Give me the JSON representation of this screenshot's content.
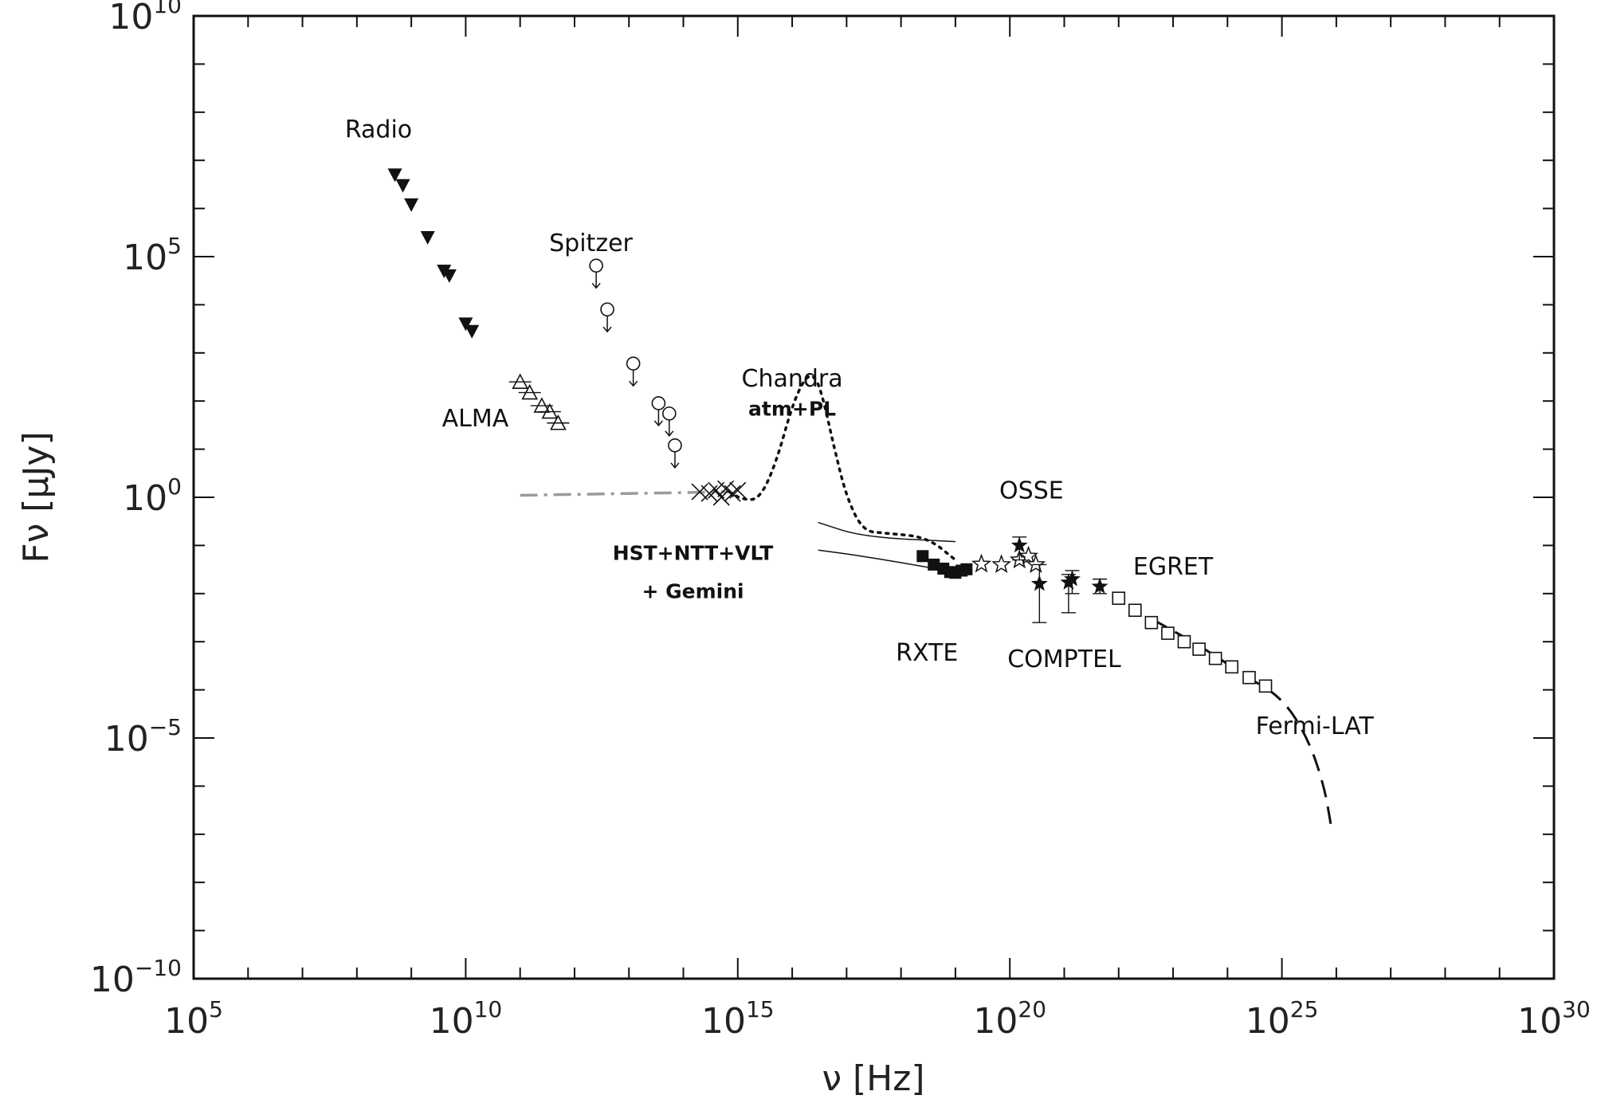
{
  "chart_data": {
    "type": "scatter",
    "xscale": "log",
    "yscale": "log",
    "xlim": [
      100000.0,
      1e+30
    ],
    "ylim": [
      1e-10,
      10000000000.0
    ],
    "xlabel": "ν [Hz]",
    "ylabel": "Fν [μJy]",
    "x_ticks": [
      {
        "base": "10",
        "exp": "5"
      },
      {
        "base": "10",
        "exp": "10"
      },
      {
        "base": "10",
        "exp": "15"
      },
      {
        "base": "10",
        "exp": "20"
      },
      {
        "base": "10",
        "exp": "25"
      },
      {
        "base": "10",
        "exp": "30"
      }
    ],
    "y_ticks": [
      {
        "base": "10",
        "exp": "−10"
      },
      {
        "base": "10",
        "exp": "−5"
      },
      {
        "base": "10",
        "exp": "0"
      },
      {
        "base": "10",
        "exp": "5"
      },
      {
        "base": "10",
        "exp": "10"
      }
    ],
    "annotations": [
      {
        "text": "Radio",
        "x": 250000000.0,
        "y": 30000000.0
      },
      {
        "text": "Spitzer",
        "x": 2000000000000.0,
        "y": 130000.0
      },
      {
        "text": "Chandra",
        "x": 1e+16,
        "y": 200
      },
      {
        "text": "atm+PL",
        "x": 1e+16,
        "y": 50
      },
      {
        "text": "ALMA",
        "x": 15000000000.0,
        "y": 30
      },
      {
        "text": "HST+NTT+VLT",
        "x": 150000000000000.0,
        "y": 0.05
      },
      {
        "text": "+ Gemini",
        "x": 150000000000000.0,
        "y": 0.008
      },
      {
        "text": "OSSE",
        "x": 2.5e+20,
        "y": 0.95
      },
      {
        "text": "EGRET",
        "x": 1e+23,
        "y": 0.025
      },
      {
        "text": "RXTE",
        "x": 3e+18,
        "y": 0.0004
      },
      {
        "text": "COMPTEL",
        "x": 1e+21,
        "y": 0.0003
      },
      {
        "text": "Fermi-LAT",
        "x": 4e+25,
        "y": 1.2e-05
      }
    ],
    "series": [
      {
        "marker": "down-triangle-filled",
        "points": [
          [
            500000000.0,
            5000000.0
          ],
          [
            700000000.0,
            3000000.0
          ],
          [
            1000000000.0,
            1200000.0
          ],
          [
            2000000000.0,
            250000.0
          ],
          [
            4000000000.0,
            50000.0
          ],
          [
            5000000000.0,
            40000.0
          ],
          [
            10000000000.0,
            4000.0
          ],
          [
            13000000000.0,
            2800.0
          ]
        ]
      },
      {
        "marker": "circle-upper-limit",
        "points": [
          [
            2500000000000.0,
            65000.0
          ],
          [
            4000000000000.0,
            8000.0
          ],
          [
            12000000000000.0,
            600
          ],
          [
            35000000000000.0,
            90
          ],
          [
            55000000000000.0,
            55
          ],
          [
            70000000000000.0,
            12
          ]
        ]
      },
      {
        "marker": "up-triangle-open",
        "points": [
          [
            100000000000.0,
            250
          ],
          [
            150000000000.0,
            150
          ],
          [
            250000000000.0,
            80
          ],
          [
            350000000000.0,
            60
          ],
          [
            500000000000.0,
            35
          ]
        ]
      },
      {
        "marker": "cross",
        "points": [
          [
            200000000000000.0,
            1.3
          ],
          [
            300000000000000.0,
            1.2
          ],
          [
            400000000000000.0,
            1.4
          ],
          [
            500000000000000.0,
            1.0
          ],
          [
            600000000000000.0,
            1.5
          ],
          [
            800000000000000.0,
            1.2
          ],
          [
            1000000000000000.0,
            1.4
          ]
        ]
      },
      {
        "marker": "square-filled",
        "points": [
          [
            2.5e+18,
            0.06
          ],
          [
            4e+18,
            0.04
          ],
          [
            6e+18,
            0.033
          ],
          [
            8e+18,
            0.028
          ],
          [
            1e+19,
            0.027
          ],
          [
            1.3e+19,
            0.03
          ],
          [
            1.6e+19,
            0.032
          ]
        ]
      },
      {
        "marker": "star-open",
        "points": [
          [
            3e+19,
            0.041
          ],
          [
            7e+19,
            0.04
          ],
          [
            1.5e+20,
            0.05
          ],
          [
            2.2e+20,
            0.06
          ],
          [
            3e+20,
            0.04
          ]
        ]
      },
      {
        "marker": "star-filled",
        "points": [
          [
            1.5e+20,
            0.1,
            0.15,
            0.05
          ],
          [
            3.5e+20,
            0.016,
            0.04,
            0.0025
          ],
          [
            1.2e+21,
            0.017,
            0.025,
            0.004
          ],
          [
            1.4e+21,
            0.02,
            0.03,
            0.01
          ],
          [
            4.5e+21,
            0.014,
            0.02,
            0.01
          ]
        ]
      },
      {
        "marker": "square-open",
        "points": [
          [
            1e+22,
            0.008
          ],
          [
            2e+22,
            0.0045
          ],
          [
            4e+22,
            0.0025
          ],
          [
            8e+22,
            0.0015
          ],
          [
            1.6e+23,
            0.001
          ],
          [
            3e+23,
            0.0007
          ],
          [
            6e+23,
            0.00045
          ],
          [
            1.2e+24,
            0.0003
          ],
          [
            2.5e+24,
            0.00018
          ],
          [
            5e+24,
            0.00012
          ]
        ]
      }
    ],
    "curves": [
      {
        "style": "dash-dot-gray",
        "points": [
          [
            100000000000.0,
            1.1
          ],
          [
            1000000000000.0,
            1.15
          ],
          [
            10000000000000.0,
            1.2
          ],
          [
            100000000000000.0,
            1.25
          ],
          [
            700000000000000.0,
            1.3
          ]
        ]
      },
      {
        "style": "dotted",
        "points": [
          [
            700000000000000.0,
            1.3
          ],
          [
            1200000000000000.0,
            0.9
          ],
          [
            2500000000000000.0,
            0.9
          ],
          [
            5000000000000000.0,
            5
          ],
          [
            1e+16,
            80
          ],
          [
            1.7e+16,
            300
          ],
          [
            2.5e+16,
            350
          ],
          [
            3.5e+16,
            150
          ],
          [
            6e+16,
            10
          ],
          [
            1e+17,
            1.0
          ],
          [
            2e+17,
            0.2
          ],
          [
            5e+17,
            0.18
          ],
          [
            3e+18,
            0.15
          ],
          [
            1e+19,
            0.05
          ]
        ]
      },
      {
        "style": "solid-thin",
        "points": [
          [
            3e+16,
            0.3
          ],
          [
            2e+17,
            0.15
          ],
          [
            1e+19,
            0.12
          ]
        ]
      },
      {
        "style": "solid-thin",
        "points": [
          [
            3e+16,
            0.08
          ],
          [
            2e+17,
            0.06
          ],
          [
            1e+19,
            0.028
          ]
        ]
      },
      {
        "style": "dashed",
        "points": [
          [
            4e+22,
            0.003
          ],
          [
            4e+23,
            0.0007
          ],
          [
            2e+24,
            0.0002
          ],
          [
            1e+25,
            7e-05
          ],
          [
            3e+25,
            1e-05
          ],
          [
            6e+25,
            1e-06
          ],
          [
            8e+25,
            1.5e-07
          ]
        ]
      }
    ],
    "grid": false,
    "legend": "none"
  }
}
